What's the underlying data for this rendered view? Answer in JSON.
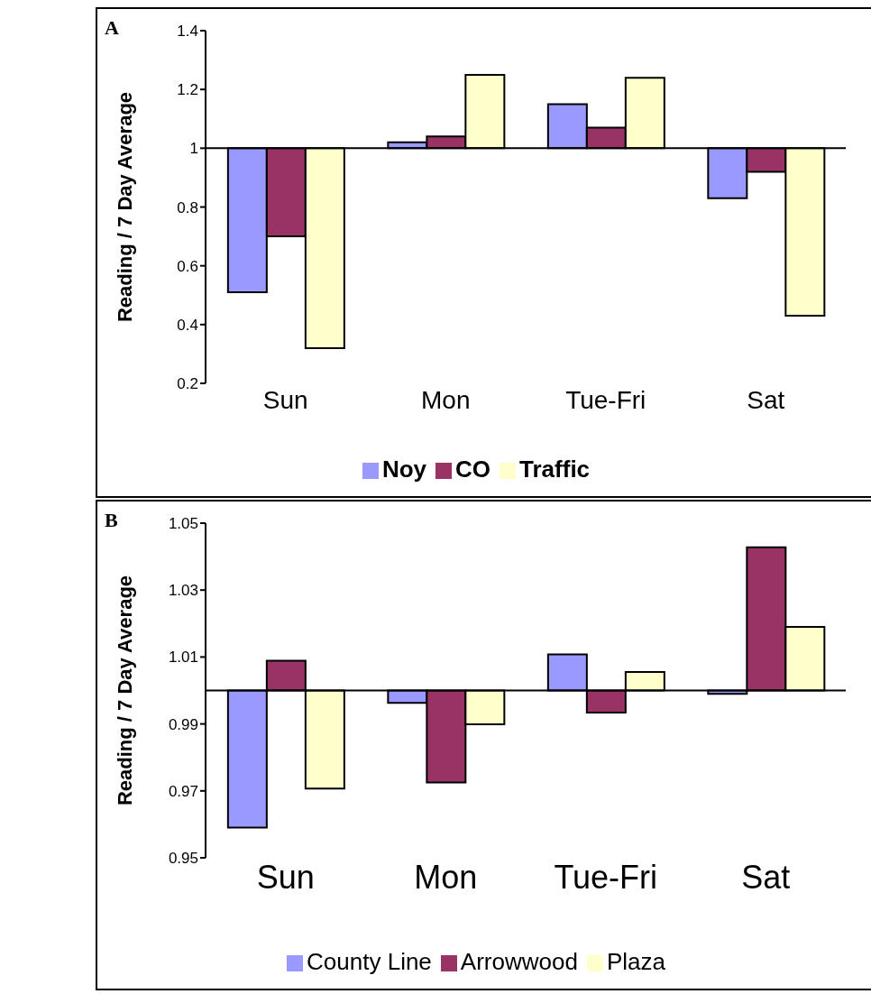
{
  "chart_data": [
    {
      "type": "bar",
      "title": "A",
      "ylabel": "Reading / 7 Day Average",
      "categories": [
        "Sun",
        "Mon",
        "Tue-Fri",
        "Sat"
      ],
      "ylim": [
        0.2,
        1.4
      ],
      "yticks": [
        0.2,
        0.4,
        0.6,
        0.8,
        1,
        1.2,
        1.4
      ],
      "legend": "bottom",
      "grid": false,
      "ref_lines": [
        {
          "axis": "y",
          "value": 1,
          "color": "#000000"
        }
      ],
      "series": [
        {
          "name": "Noy",
          "color": "#9999ff",
          "base": [
            1,
            1,
            1,
            1
          ],
          "values": [
            -0.49,
            0.02,
            0.15,
            -0.17
          ]
        },
        {
          "name": "CO",
          "color": "#993366",
          "base": [
            1,
            1,
            1,
            1
          ],
          "values": [
            -0.3,
            0.04,
            0.07,
            -0.08
          ]
        },
        {
          "name": "Traffic",
          "color": "#ffffcc",
          "base": [
            1,
            1,
            1,
            1
          ],
          "values": [
            -0.68,
            0.25,
            0.24,
            -0.57
          ]
        }
      ]
    },
    {
      "type": "bar",
      "title": "B",
      "ylabel": "Reading / 7 Day Average",
      "categories": [
        "Sun",
        "Mon",
        "Tue-Fri",
        "Sat"
      ],
      "ylim": [
        0.95,
        1.05
      ],
      "yticks": [
        0.95,
        0.97,
        0.99,
        1.01,
        1.03,
        1.05
      ],
      "legend": "bottom",
      "grid": false,
      "ref_lines": [
        {
          "axis": "y",
          "value": 1,
          "color": "#000000"
        }
      ],
      "series": [
        {
          "name": "County Line",
          "color": "#9999ff",
          "base": [
            1,
            1,
            1,
            1
          ],
          "values": [
            -0.041,
            -0.0037,
            0.0108,
            -0.001
          ]
        },
        {
          "name": "Arrowwood",
          "color": "#993366",
          "base": [
            1,
            1,
            1,
            1
          ],
          "values": [
            0.0089,
            -0.0275,
            -0.0066,
            0.0428
          ]
        },
        {
          "name": "Plaza",
          "color": "#ffffcc",
          "base": [
            1,
            1,
            1,
            1
          ],
          "values": [
            -0.0293,
            -0.0101,
            0.0055,
            0.019
          ]
        }
      ]
    }
  ]
}
